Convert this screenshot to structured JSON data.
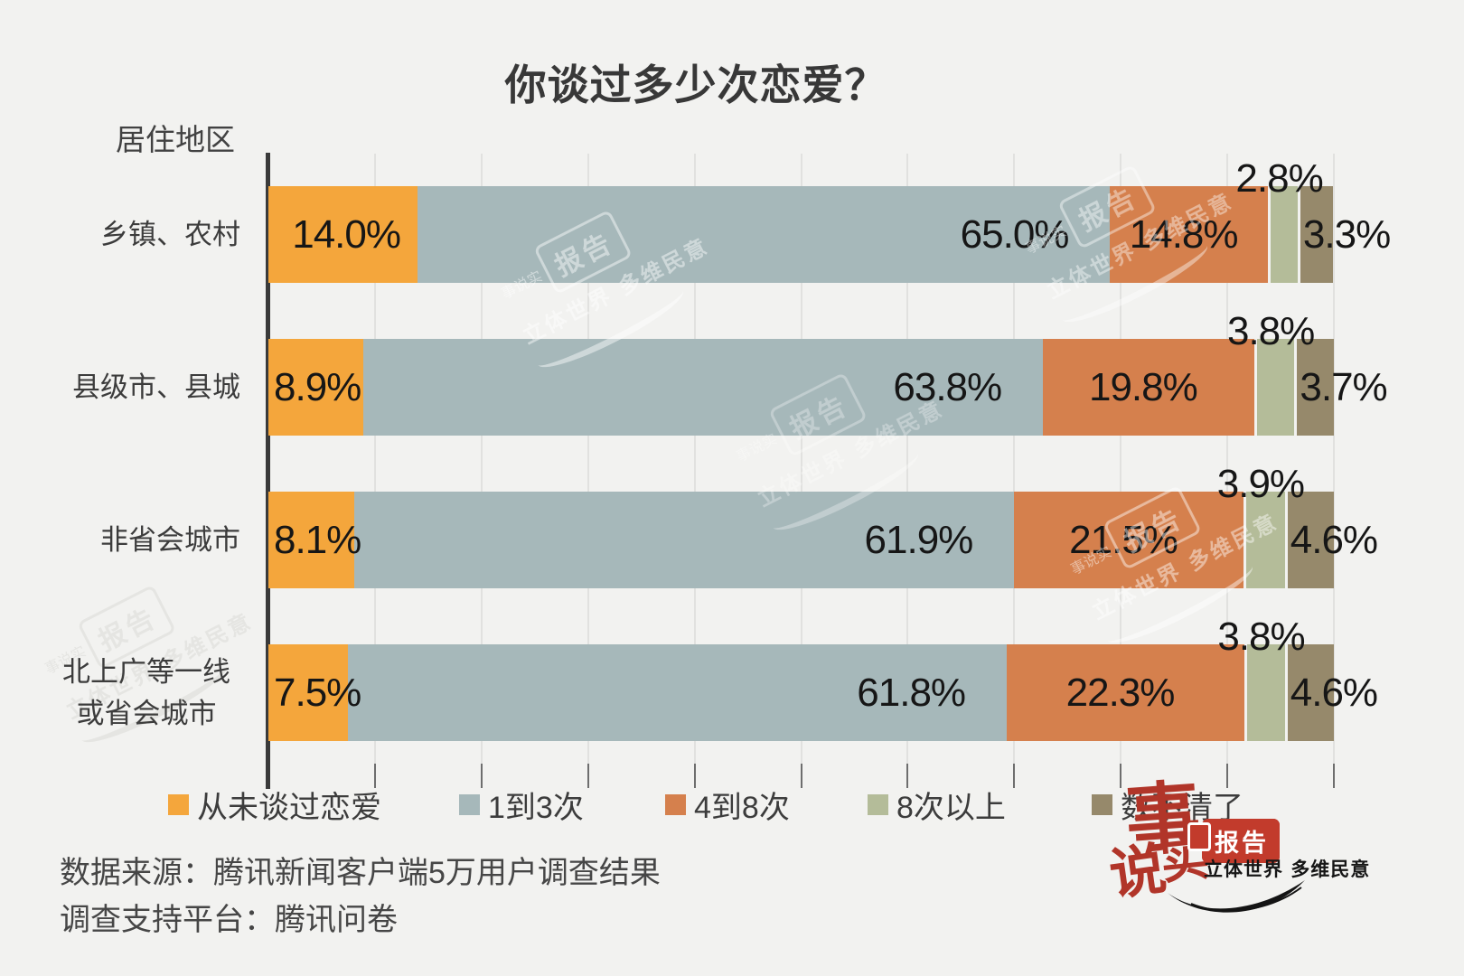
{
  "title": "你谈过多少次恋爱？",
  "category_axis_label": "居住地区",
  "chart_data": {
    "type": "bar",
    "stacked": true,
    "orientation": "horizontal",
    "title": "你谈过多少次恋爱？",
    "category_axis_label": "居住地区",
    "categories": [
      "乡镇、农村",
      "县级市、县城",
      "非省会城市",
      [
        "北上广等一线",
        "或省会城市"
      ]
    ],
    "series": [
      {
        "name": "从未谈过恋爱",
        "color": "#F4A63C",
        "values": [
          14.0,
          8.9,
          8.1,
          7.5
        ]
      },
      {
        "name": "1到3次",
        "color": "#A6B8BA",
        "values": [
          65.0,
          63.8,
          61.9,
          61.8
        ]
      },
      {
        "name": "4到8次",
        "color": "#D5804D",
        "values": [
          14.8,
          19.8,
          21.5,
          22.3
        ]
      },
      {
        "name": "8次以上",
        "color": "#B4BC99",
        "values": [
          2.8,
          3.8,
          3.9,
          3.8
        ]
      },
      {
        "name": "数不清了",
        "color": "#96896B",
        "values": [
          3.3,
          3.7,
          4.6,
          4.6
        ]
      }
    ],
    "value_suffix": "%",
    "xlim": [
      0,
      100
    ],
    "gridline_step_pct": 10,
    "grid": "vertical",
    "legend_position": "bottom"
  },
  "legend": {
    "items": [
      "从未谈过恋爱",
      "1到3次",
      "4到8次",
      "8次以上",
      "数不清了"
    ]
  },
  "source": {
    "line1": "数据来源：腾讯新闻客户端5万用户调查结果",
    "line2": "调查支持平台：腾讯问卷"
  },
  "logo": {
    "char1": "事",
    "char2": "说",
    "char3": "实",
    "badge": "报告",
    "tagline": "立体世界 多维民意"
  },
  "colors": {
    "background": "#F2F2F0",
    "axis": "#3A3A3A",
    "gridline": "#E1E1DF",
    "tick": "#6E6E6E",
    "value_text": "#161616",
    "label_text": "#3C3C3C",
    "logo_red": "#B13529",
    "badge_red": "#C23B2C"
  }
}
